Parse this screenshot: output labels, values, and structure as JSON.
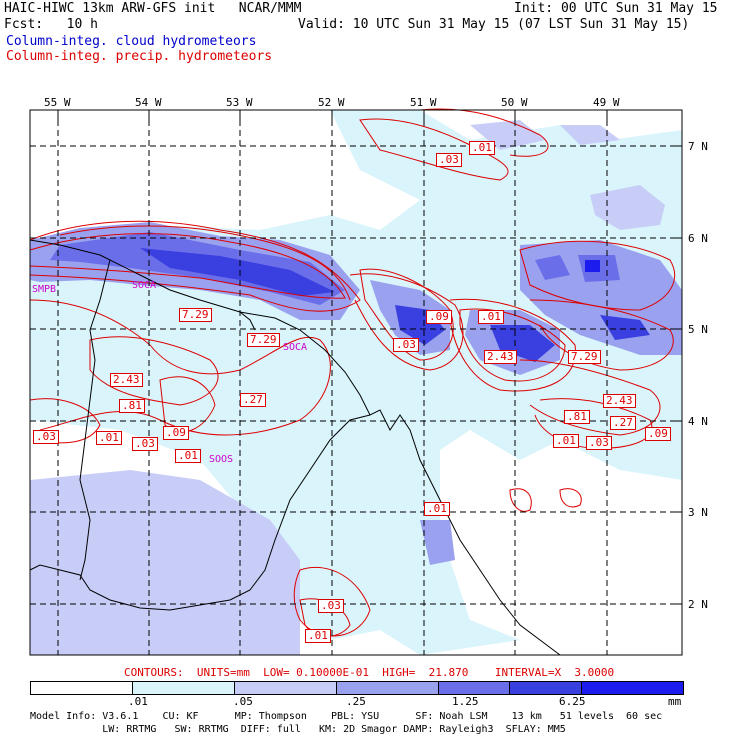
{
  "header": {
    "line1_left": "HAIC-HIWC 13km ARW-GFS init   NCAR/MMM",
    "line1_right": "Init: 00 UTC Sun 31 May 15",
    "line2_left": "Fcst:   10 h",
    "line2_right": "Valid: 10 UTC Sun 31 May 15 (07 LST Sun 31 May 15)",
    "field1": "Column-integ. cloud hydrometeors",
    "field2": "Column-integ. precip. hydrometeors"
  },
  "colors": {
    "cloud_field": "#0000cc",
    "precip_contours": "#dd0000",
    "station_labels": "#cc00cc"
  },
  "axes": {
    "lon_labels": [
      "55 W",
      "54 W",
      "53 W",
      "52 W",
      "51 W",
      "50 W",
      "49 W"
    ],
    "lat_labels": [
      "7 N",
      "6 N",
      "5 N",
      "4 N",
      "3 N",
      "2 N"
    ]
  },
  "stations": [
    "SMPB",
    "SOCA",
    "SOOS",
    "SOCA"
  ],
  "contour_labels": [
    ".03",
    ".01",
    "7.29",
    "7.29",
    ".03",
    ".09",
    ".01",
    "2.43",
    ".81",
    "2.43",
    "7.29",
    ".27",
    ".03",
    ".01",
    ".03",
    ".09",
    ".01",
    ".81",
    "2.43",
    ".27",
    ".09",
    ".01",
    ".03",
    ".01",
    ".03",
    ".01"
  ],
  "contour_info": "CONTOURS:  UNITS=mm  LOW= 0.10000E-01  HIGH=  21.870    INTERVAL=X  3.0000",
  "colorbar": {
    "labels": [
      ".01",
      ".05",
      ".25",
      "1.25",
      "6.25"
    ],
    "unit": "mm",
    "colors": [
      "#ffffff",
      "#d9f4fb",
      "#c7cdf7",
      "#9aa2f0",
      "#6a6ee8",
      "#3a3fe0",
      "#1c1cee"
    ]
  },
  "model_info": {
    "line1": "Model Info: V3.6.1    CU: KF      MP: Thompson    PBL: YSU      SF: Noah LSM    13 km   51 levels  60 sec",
    "line2": "            LW: RRTMG   SW: RRTMG  DIFF: full   KM: 2D Smagor DAMP: Rayleigh3  SFLAY: MM5"
  }
}
